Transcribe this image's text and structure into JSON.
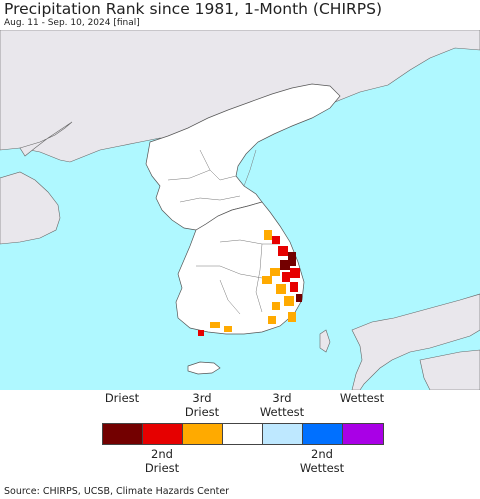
{
  "title": "Precipitation Rank since 1981, 1-Month (CHIRPS)",
  "subtitle": "Aug. 11 - Sep. 10, 2024 [final]",
  "legend": {
    "top_labels": [
      {
        "line1": "",
        "line2": "Driest"
      },
      {
        "line1": "3rd",
        "line2": "Driest"
      },
      {
        "line1": "3rd",
        "line2": "Wettest"
      },
      {
        "line1": "",
        "line2": "Wettest"
      }
    ],
    "bottom_labels": [
      {
        "line1": "2nd",
        "line2": "Driest"
      },
      {
        "line1": "2nd",
        "line2": "Wettest"
      }
    ],
    "colors": [
      "#730000",
      "#e60000",
      "#ffaa00",
      "#ffffff",
      "#bee8ff",
      "#0070ff",
      "#a900e6"
    ]
  },
  "map_colors": {
    "ocean": "#aff8ff",
    "land_outside": "#e9e7ec",
    "land_study": "#ffffff",
    "border": "#555555"
  },
  "source": "Source: CHIRPS, UCSB, Climate Hazards Center"
}
